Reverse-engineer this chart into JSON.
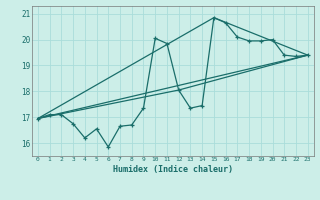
{
  "xlabel": "Humidex (Indice chaleur)",
  "bg_color": "#cceee8",
  "grid_color": "#aaddda",
  "line_color": "#1a6e6a",
  "xlim": [
    -0.5,
    23.5
  ],
  "ylim": [
    15.5,
    21.3
  ],
  "yticks": [
    16,
    17,
    18,
    19,
    20,
    21
  ],
  "xticks": [
    0,
    1,
    2,
    3,
    4,
    5,
    6,
    7,
    8,
    9,
    10,
    11,
    12,
    13,
    14,
    15,
    16,
    17,
    18,
    19,
    20,
    21,
    22,
    23
  ],
  "line1_x": [
    0,
    1,
    2,
    3,
    4,
    5,
    6,
    7,
    8,
    9,
    10,
    11,
    12,
    13,
    14,
    15,
    16,
    17,
    18,
    19,
    20,
    21,
    22,
    23
  ],
  "line1_y": [
    16.95,
    17.1,
    17.1,
    16.75,
    16.2,
    16.55,
    15.85,
    16.65,
    16.7,
    17.35,
    20.05,
    19.85,
    18.05,
    17.35,
    17.45,
    20.85,
    20.65,
    20.1,
    19.95,
    19.95,
    20.0,
    19.4,
    19.35,
    19.4
  ],
  "line2_x": [
    0,
    23
  ],
  "line2_y": [
    16.95,
    19.4
  ],
  "line3_x": [
    0,
    12,
    23
  ],
  "line3_y": [
    16.95,
    18.05,
    19.4
  ],
  "line4_x": [
    0,
    15,
    23
  ],
  "line4_y": [
    16.95,
    20.85,
    19.4
  ]
}
